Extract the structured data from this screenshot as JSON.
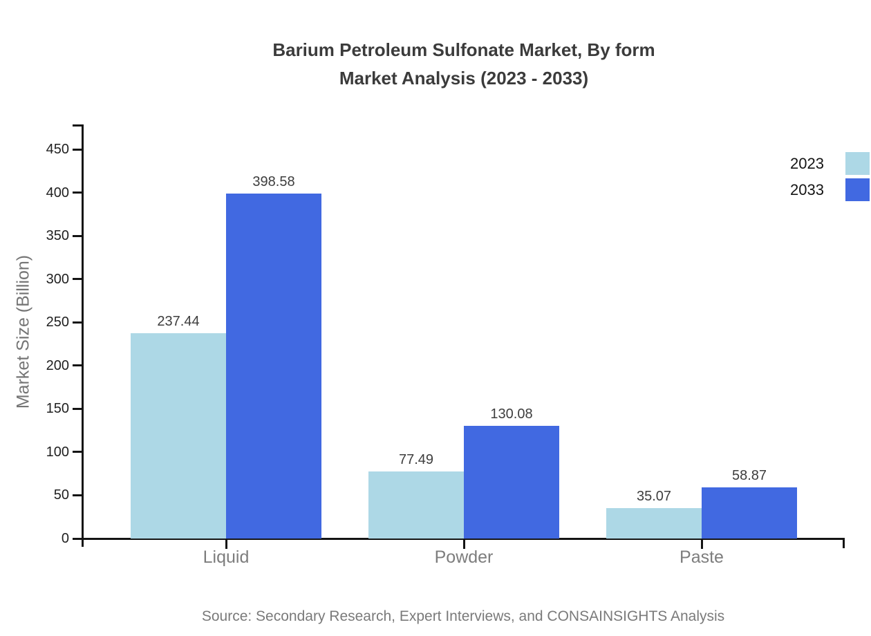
{
  "figure": {
    "title_line1": "Barium Petroleum Sulfonate Market, By form",
    "title_line2": "Market Analysis (2023 - 2033)",
    "y_axis_label": "Market Size (Billion)",
    "source_note": "Source: Secondary Research, Expert Interviews, and CONSAINSIGHTS Analysis"
  },
  "legend": [
    {
      "label": "2023",
      "color": "#ADD8E6"
    },
    {
      "label": "2033",
      "color": "#4169E1"
    }
  ],
  "chart_data": {
    "type": "bar",
    "title": "Barium Petroleum Sulfonate Market, By form Market Analysis (2023 - 2033)",
    "categories": [
      "Liquid",
      "Powder",
      "Paste"
    ],
    "series": [
      {
        "name": "2023",
        "color": "#ADD8E6",
        "values": [
          237.44,
          77.49,
          35.07
        ]
      },
      {
        "name": "2033",
        "color": "#4169E1",
        "values": [
          398.58,
          130.08,
          58.87
        ]
      }
    ],
    "xlabel": "",
    "ylabel": "Market Size (Billion)",
    "ylim": [
      0,
      475
    ],
    "yticks": [
      0,
      50,
      100,
      150,
      200,
      250,
      300,
      350,
      400,
      450
    ],
    "grid": false,
    "legend_position": "upper-right",
    "value_labels_decimals": 2
  }
}
